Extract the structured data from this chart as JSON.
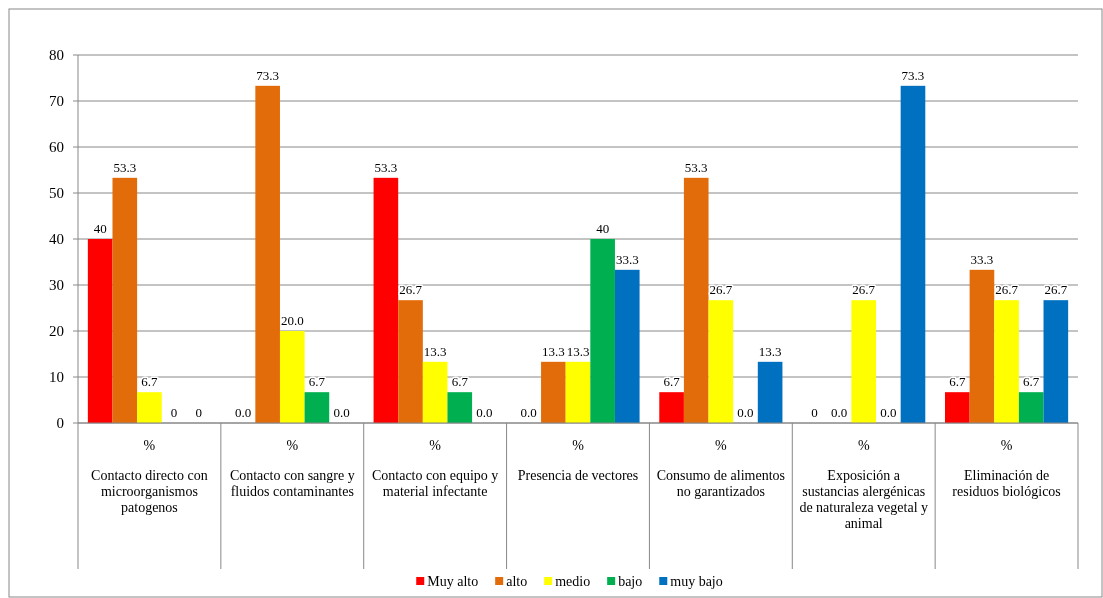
{
  "chart_data": {
    "type": "bar",
    "categories": [
      "%\nContacto directo con microorganismos patogenos",
      "%\nContacto con sangre y fluidos contaminantes",
      "%\nContacto con equipo y material infectante",
      "%\nPresencia de vectores",
      "%\nConsumo de alimentos no garantizados",
      "%\nExposición a sustancias alergénicas de naturaleza vegetal y animal",
      "%\nEliminación de residuos biológicos"
    ],
    "series": [
      {
        "name": "Muy alto",
        "color": "#ff0000",
        "values": [
          40,
          0,
          53.3,
          0,
          6.7,
          0,
          6.7
        ],
        "value_labels": [
          "40",
          "0.0",
          "53.3",
          "0.0",
          "6.7",
          "0",
          "6.7"
        ]
      },
      {
        "name": "alto",
        "color": "#e36c0a",
        "values": [
          53.3,
          73.3,
          26.7,
          13.3,
          53.3,
          0,
          33.3
        ],
        "value_labels": [
          "53.3",
          "73.3",
          "26.7",
          "13.3",
          "53.3",
          "0.0",
          "33.3"
        ]
      },
      {
        "name": "medio",
        "color": "#ffff00",
        "values": [
          6.7,
          20,
          13.3,
          13.3,
          26.7,
          26.7,
          26.7
        ],
        "value_labels": [
          "6.7",
          "20.0",
          "13.3",
          "13.3",
          "26.7",
          "26.7",
          "26.7"
        ]
      },
      {
        "name": "bajo",
        "color": "#00b050",
        "values": [
          0,
          6.7,
          6.7,
          40,
          0,
          0,
          6.7
        ],
        "value_labels": [
          "0",
          "6.7",
          "6.7",
          "40",
          "0.0",
          "0.0",
          "6.7"
        ]
      },
      {
        "name": "muy bajo",
        "color": "#0070c0",
        "values": [
          0,
          0,
          0,
          33.3,
          13.3,
          73.3,
          26.7
        ],
        "value_labels": [
          "0",
          "0.0",
          "0.0",
          "33.3",
          "13.3",
          "73.3",
          "26.7"
        ]
      }
    ],
    "ylim": [
      0,
      80
    ],
    "yticks": [
      0,
      10,
      20,
      30,
      40,
      50,
      60,
      70,
      80
    ],
    "grid": "y",
    "legend": "bottom"
  }
}
